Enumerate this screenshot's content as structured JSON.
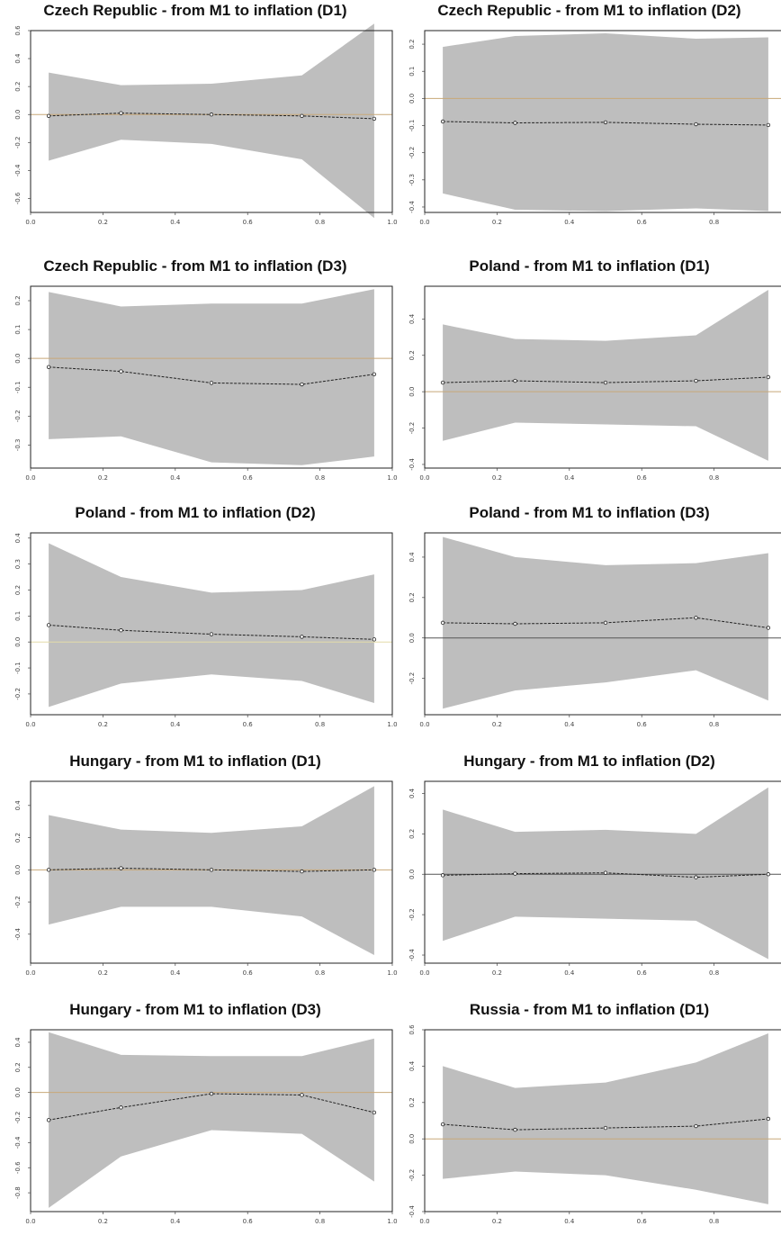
{
  "chart_data": [
    {
      "type": "line",
      "title": "Czech Republic - from M1 to inflation (D1)",
      "x": [
        0.05,
        0.25,
        0.5,
        0.75,
        0.95
      ],
      "series": [
        {
          "values": [
            -0.01,
            0.01,
            0.0,
            -0.01,
            -0.03
          ]
        }
      ],
      "band_upper": [
        0.3,
        0.21,
        0.22,
        0.28,
        0.65
      ],
      "band_lower": [
        -0.33,
        -0.18,
        -0.21,
        -0.32,
        -0.74
      ],
      "xlim": [
        0.0,
        1.0
      ],
      "ylim": [
        -0.7,
        0.6
      ],
      "xticks": [
        "0.0",
        "0.2",
        "0.4",
        "0.6",
        "0.8",
        "1.0"
      ],
      "yticks": [
        "-0.6",
        "-0.4",
        "-0.2",
        "0.0",
        "0.2",
        "0.4",
        "0.6"
      ],
      "zero_line_color": "#c8a878",
      "band_color": "#bebebe"
    },
    {
      "type": "line",
      "title": "Czech Republic - from M1 to inflation (D2)",
      "x": [
        0.05,
        0.25,
        0.5,
        0.75,
        0.95
      ],
      "series": [
        {
          "values": [
            -0.085,
            -0.09,
            -0.088,
            -0.095,
            -0.098
          ]
        }
      ],
      "band_upper": [
        0.19,
        0.23,
        0.24,
        0.22,
        0.225
      ],
      "band_lower": [
        -0.35,
        -0.41,
        -0.415,
        -0.405,
        -0.415
      ],
      "xlim": [
        0.0,
        1.0
      ],
      "ylim": [
        -0.42,
        0.25
      ],
      "xticks": [
        "0.0",
        "0.2",
        "0.4",
        "0.6",
        "0.8",
        "1.0"
      ],
      "yticks": [
        "-0.4",
        "-0.3",
        "-0.2",
        "-0.1",
        "0.0",
        "0.1",
        "0.2"
      ],
      "zero_line_color": "#c8a878",
      "band_color": "#bebebe"
    },
    {
      "type": "line",
      "title": "Czech Republic - from M1 to inflation (D3)",
      "x": [
        0.05,
        0.25,
        0.5,
        0.75,
        0.95
      ],
      "series": [
        {
          "values": [
            -0.03,
            -0.045,
            -0.085,
            -0.09,
            -0.055
          ]
        }
      ],
      "band_upper": [
        0.23,
        0.18,
        0.19,
        0.19,
        0.24
      ],
      "band_lower": [
        -0.28,
        -0.27,
        -0.36,
        -0.37,
        -0.34
      ],
      "xlim": [
        0.0,
        1.0
      ],
      "ylim": [
        -0.38,
        0.25
      ],
      "xticks": [
        "0.0",
        "0.2",
        "0.4",
        "0.6",
        "0.8",
        "1.0"
      ],
      "yticks": [
        "-0.3",
        "-0.2",
        "-0.1",
        "0.0",
        "0.1",
        "0.2"
      ],
      "zero_line_color": "#c8a878",
      "band_color": "#bebebe"
    },
    {
      "type": "line",
      "title": "Poland - from M1 to inflation (D1)",
      "x": [
        0.05,
        0.25,
        0.5,
        0.75,
        0.95
      ],
      "series": [
        {
          "values": [
            0.05,
            0.06,
            0.05,
            0.06,
            0.08
          ]
        }
      ],
      "band_upper": [
        0.37,
        0.29,
        0.28,
        0.31,
        0.56
      ],
      "band_lower": [
        -0.27,
        -0.17,
        -0.18,
        -0.19,
        -0.38
      ],
      "xlim": [
        0.0,
        1.0
      ],
      "ylim": [
        -0.42,
        0.58
      ],
      "xticks": [
        "0.0",
        "0.2",
        "0.4",
        "0.6",
        "0.8",
        "1.0"
      ],
      "yticks": [
        "-0.4",
        "-0.2",
        "0.0",
        "0.2",
        "0.4"
      ],
      "zero_line_color": "#c8a878",
      "band_color": "#bebebe"
    },
    {
      "type": "line",
      "title": "Poland - from M1 to inflation (D2)",
      "x": [
        0.05,
        0.25,
        0.5,
        0.75,
        0.95
      ],
      "series": [
        {
          "values": [
            0.065,
            0.045,
            0.03,
            0.02,
            0.01
          ]
        }
      ],
      "band_upper": [
        0.38,
        0.25,
        0.19,
        0.2,
        0.26
      ],
      "band_lower": [
        -0.25,
        -0.16,
        -0.125,
        -0.15,
        -0.235
      ],
      "xlim": [
        0.0,
        1.0
      ],
      "ylim": [
        -0.28,
        0.42
      ],
      "xticks": [
        "0.0",
        "0.2",
        "0.4",
        "0.6",
        "0.8",
        "1.0"
      ],
      "yticks": [
        "-0.2",
        "-0.1",
        "0.0",
        "0.1",
        "0.2",
        "0.3",
        "0.4"
      ],
      "zero_line_color": "#e4dca8",
      "band_color": "#bebebe"
    },
    {
      "type": "line",
      "title": "Poland - from M1 to inflation (D3)",
      "x": [
        0.05,
        0.25,
        0.5,
        0.75,
        0.95
      ],
      "series": [
        {
          "values": [
            0.075,
            0.07,
            0.075,
            0.1,
            0.05
          ]
        }
      ],
      "band_upper": [
        0.5,
        0.4,
        0.36,
        0.37,
        0.42
      ],
      "band_lower": [
        -0.35,
        -0.26,
        -0.22,
        -0.16,
        -0.31
      ],
      "xlim": [
        0.0,
        1.0
      ],
      "ylim": [
        -0.38,
        0.52
      ],
      "xticks": [
        "0.0",
        "0.2",
        "0.4",
        "0.6",
        "0.8",
        "1.0"
      ],
      "yticks": [
        "-0.2",
        "0.0",
        "0.2",
        "0.4"
      ],
      "zero_line_color": "#555555",
      "band_color": "#bebebe"
    },
    {
      "type": "line",
      "title": "Hungary - from M1 to inflation (D1)",
      "x": [
        0.05,
        0.25,
        0.5,
        0.75,
        0.95
      ],
      "series": [
        {
          "values": [
            0.0,
            0.01,
            0.0,
            -0.01,
            0.0
          ]
        }
      ],
      "band_upper": [
        0.34,
        0.25,
        0.23,
        0.27,
        0.52
      ],
      "band_lower": [
        -0.34,
        -0.23,
        -0.23,
        -0.29,
        -0.53
      ],
      "xlim": [
        0.0,
        1.0
      ],
      "ylim": [
        -0.58,
        0.55
      ],
      "xticks": [
        "0.0",
        "0.2",
        "0.4",
        "0.6",
        "0.8",
        "1.0"
      ],
      "yticks": [
        "-0.4",
        "-0.2",
        "0.0",
        "0.2",
        "0.4"
      ],
      "zero_line_color": "#c8a878",
      "band_color": "#bebebe"
    },
    {
      "type": "line",
      "title": "Hungary - from M1 to inflation (D2)",
      "x": [
        0.05,
        0.25,
        0.5,
        0.75,
        0.95
      ],
      "series": [
        {
          "values": [
            -0.005,
            0.003,
            0.007,
            -0.015,
            0.0
          ]
        }
      ],
      "band_upper": [
        0.32,
        0.21,
        0.22,
        0.2,
        0.43
      ],
      "band_lower": [
        -0.33,
        -0.21,
        -0.22,
        -0.23,
        -0.42
      ],
      "xlim": [
        0.0,
        1.0
      ],
      "ylim": [
        -0.44,
        0.46
      ],
      "xticks": [
        "0.0",
        "0.2",
        "0.4",
        "0.6",
        "0.8",
        "1.0"
      ],
      "yticks": [
        "-0.4",
        "-0.2",
        "0.0",
        "0.2",
        "0.4"
      ],
      "zero_line_color": "#555555",
      "band_color": "#bebebe"
    },
    {
      "type": "line",
      "title": "Hungary - from M1 to inflation (D3)",
      "x": [
        0.05,
        0.25,
        0.5,
        0.75,
        0.95
      ],
      "series": [
        {
          "values": [
            -0.22,
            -0.12,
            -0.01,
            -0.02,
            -0.16
          ]
        }
      ],
      "band_upper": [
        0.48,
        0.3,
        0.29,
        0.29,
        0.43
      ],
      "band_lower": [
        -0.92,
        -0.51,
        -0.3,
        -0.33,
        -0.71
      ],
      "xlim": [
        0.0,
        1.0
      ],
      "ylim": [
        -0.95,
        0.5
      ],
      "xticks": [
        "0.0",
        "0.2",
        "0.4",
        "0.6",
        "0.8",
        "1.0"
      ],
      "yticks": [
        "-0.8",
        "-0.6",
        "-0.4",
        "-0.2",
        "0.0",
        "0.2",
        "0.4"
      ],
      "zero_line_color": "#c8a878",
      "band_color": "#bebebe"
    },
    {
      "type": "line",
      "title": "Russia - from M1 to inflation (D1)",
      "x": [
        0.05,
        0.25,
        0.5,
        0.75,
        0.95
      ],
      "series": [
        {
          "values": [
            0.08,
            0.05,
            0.06,
            0.07,
            0.11
          ]
        }
      ],
      "band_upper": [
        0.4,
        0.28,
        0.31,
        0.42,
        0.58
      ],
      "band_lower": [
        -0.22,
        -0.18,
        -0.2,
        -0.28,
        -0.36
      ],
      "xlim": [
        0.0,
        1.0
      ],
      "ylim": [
        -0.4,
        0.6
      ],
      "xticks": [
        "0.0",
        "0.2",
        "0.4",
        "0.6",
        "0.8",
        "1.0"
      ],
      "yticks": [
        "-0.4",
        "-0.2",
        "0.0",
        "0.2",
        "0.4",
        "0.6"
      ],
      "zero_line_color": "#c8a878",
      "band_color": "#bebebe"
    }
  ]
}
